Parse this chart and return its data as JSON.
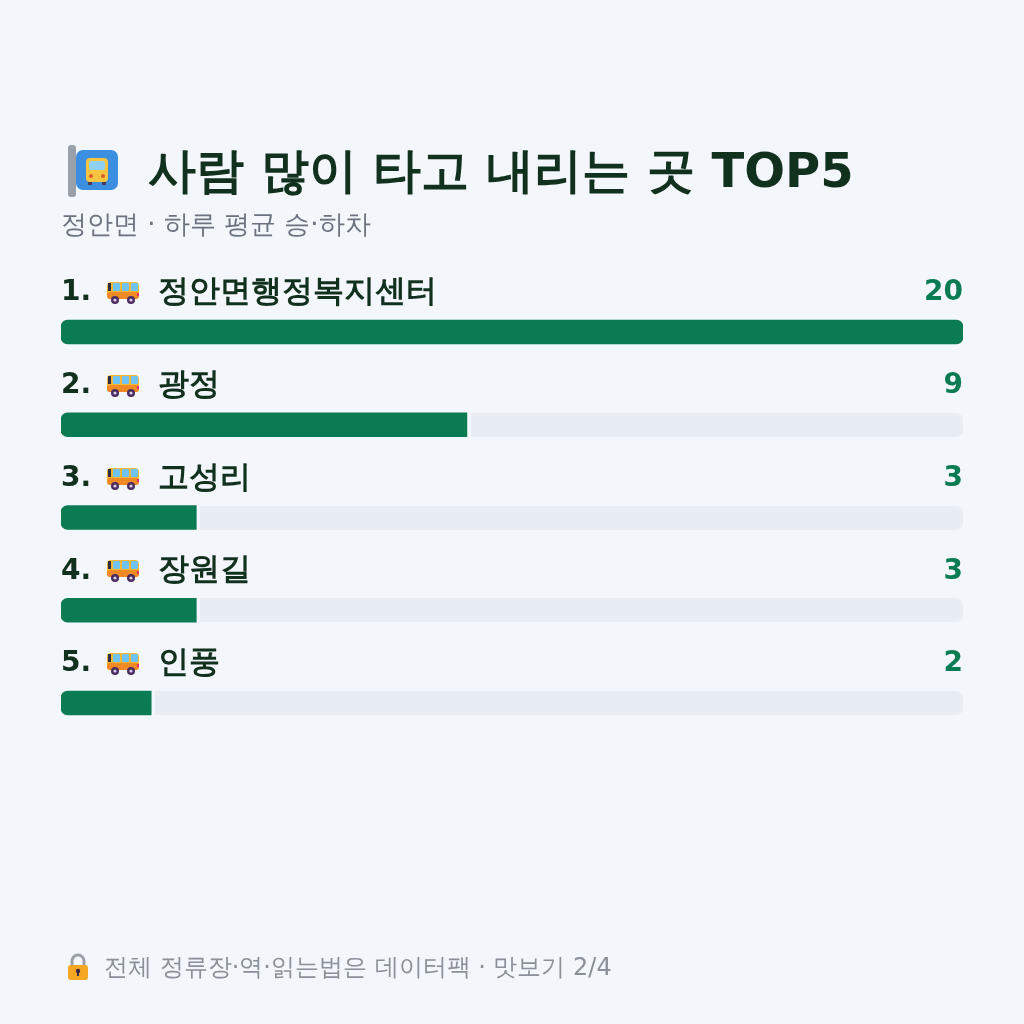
{
  "chart_data": {
    "type": "bar",
    "orientation": "horizontal",
    "title": "사람 많이 타고 내리는 곳 TOP5",
    "subtitle": "정안면 · 하루 평균 승·하차",
    "categories": [
      "1. 정안면행정복지센터",
      "2. 광정",
      "3. 고성리",
      "4. 장원길",
      "5. 인풍"
    ],
    "values": [
      20,
      9,
      3,
      3,
      2
    ],
    "color": "#0b7b53",
    "xlim": [
      0,
      20
    ],
    "data_labels": true,
    "tick_labels": "y",
    "grid": false,
    "legend": false,
    "annotations": [
      "전체 정류장·역·읽는법은 데이터팩 · 맛보기 2/4"
    ]
  }
}
